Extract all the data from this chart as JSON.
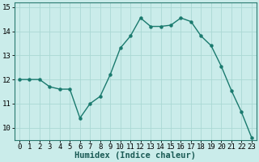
{
  "x": [
    0,
    1,
    2,
    3,
    4,
    5,
    6,
    7,
    8,
    9,
    10,
    11,
    12,
    13,
    14,
    15,
    16,
    17,
    18,
    19,
    20,
    21,
    22,
    23
  ],
  "y": [
    12.0,
    12.0,
    12.0,
    11.7,
    11.6,
    11.6,
    10.4,
    11.0,
    11.3,
    12.2,
    13.3,
    13.8,
    14.55,
    14.2,
    14.2,
    14.25,
    14.55,
    14.4,
    13.8,
    13.4,
    12.55,
    11.55,
    10.65,
    9.6
  ],
  "line_color": "#1a7a6e",
  "marker": "o",
  "marker_size": 2.2,
  "background_color": "#caecea",
  "grid_color": "#aad8d4",
  "xlabel": "Humidex (Indice chaleur)",
  "xlabel_fontsize": 7.5,
  "xlabel_fontweight": "bold",
  "ylim": [
    9.5,
    15.2
  ],
  "xlim": [
    -0.5,
    23.5
  ],
  "yticks": [
    10,
    11,
    12,
    13,
    14,
    15
  ],
  "xticks": [
    0,
    1,
    2,
    3,
    4,
    5,
    6,
    7,
    8,
    9,
    10,
    11,
    12,
    13,
    14,
    15,
    16,
    17,
    18,
    19,
    20,
    21,
    22,
    23
  ],
  "tick_fontsize": 6.5,
  "line_width": 1.0,
  "spine_color": "#2a7a70"
}
